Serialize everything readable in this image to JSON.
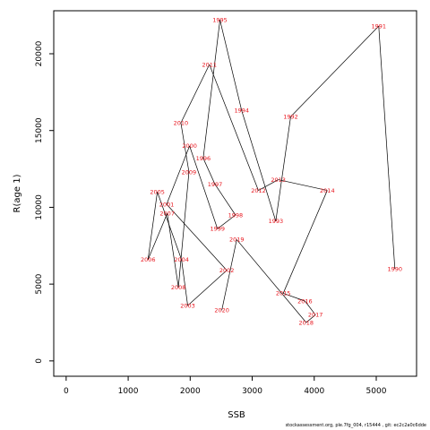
{
  "chart_data": {
    "type": "line",
    "title": "",
    "xlabel": "SSB",
    "ylabel": "R(age 1)",
    "xlim": [
      -200,
      5650
    ],
    "ylim": [
      -1000,
      22800
    ],
    "xticks": [
      0,
      1000,
      2000,
      3000,
      4000,
      5000
    ],
    "yticks": [
      0,
      5000,
      10000,
      15000,
      20000
    ],
    "line_color": "#000000",
    "label_color": "#e8141c",
    "grid": false,
    "points": [
      {
        "year": "1990",
        "x": 5300,
        "y": 6000
      },
      {
        "year": "1991",
        "x": 5040,
        "y": 21800
      },
      {
        "year": "1992",
        "x": 3620,
        "y": 15900
      },
      {
        "year": "1993",
        "x": 3380,
        "y": 9100
      },
      {
        "year": "1994",
        "x": 2830,
        "y": 16300
      },
      {
        "year": "1995",
        "x": 2480,
        "y": 22200
      },
      {
        "year": "1996",
        "x": 2210,
        "y": 13200
      },
      {
        "year": "1997",
        "x": 2400,
        "y": 11500
      },
      {
        "year": "1998",
        "x": 2730,
        "y": 9500
      },
      {
        "year": "1999",
        "x": 2440,
        "y": 8600
      },
      {
        "year": "2000",
        "x": 1990,
        "y": 14000
      },
      {
        "year": "2001",
        "x": 1620,
        "y": 10200
      },
      {
        "year": "2002",
        "x": 2590,
        "y": 5900
      },
      {
        "year": "2003",
        "x": 1960,
        "y": 3600
      },
      {
        "year": "2004",
        "x": 1860,
        "y": 6600
      },
      {
        "year": "2005",
        "x": 1470,
        "y": 11000
      },
      {
        "year": "2006",
        "x": 1320,
        "y": 6600
      },
      {
        "year": "2007",
        "x": 1630,
        "y": 9600
      },
      {
        "year": "2008",
        "x": 1810,
        "y": 4800
      },
      {
        "year": "2009",
        "x": 1980,
        "y": 12300
      },
      {
        "year": "2010",
        "x": 1850,
        "y": 15500
      },
      {
        "year": "2011",
        "x": 2310,
        "y": 19300
      },
      {
        "year": "2012",
        "x": 3100,
        "y": 11100
      },
      {
        "year": "2013",
        "x": 3420,
        "y": 11800
      },
      {
        "year": "2014",
        "x": 4210,
        "y": 11100
      },
      {
        "year": "2015",
        "x": 3500,
        "y": 4400
      },
      {
        "year": "2016",
        "x": 3850,
        "y": 3900
      },
      {
        "year": "2017",
        "x": 4020,
        "y": 3000
      },
      {
        "year": "2018",
        "x": 3870,
        "y": 2500
      },
      {
        "year": "2019",
        "x": 2750,
        "y": 7900
      },
      {
        "year": "2020",
        "x": 2510,
        "y": 3300
      }
    ]
  },
  "footer": {
    "text": "stockassessment.org,  ple.7fg_004,  r15444 ,  git: ec2c2a0c6dde"
  }
}
